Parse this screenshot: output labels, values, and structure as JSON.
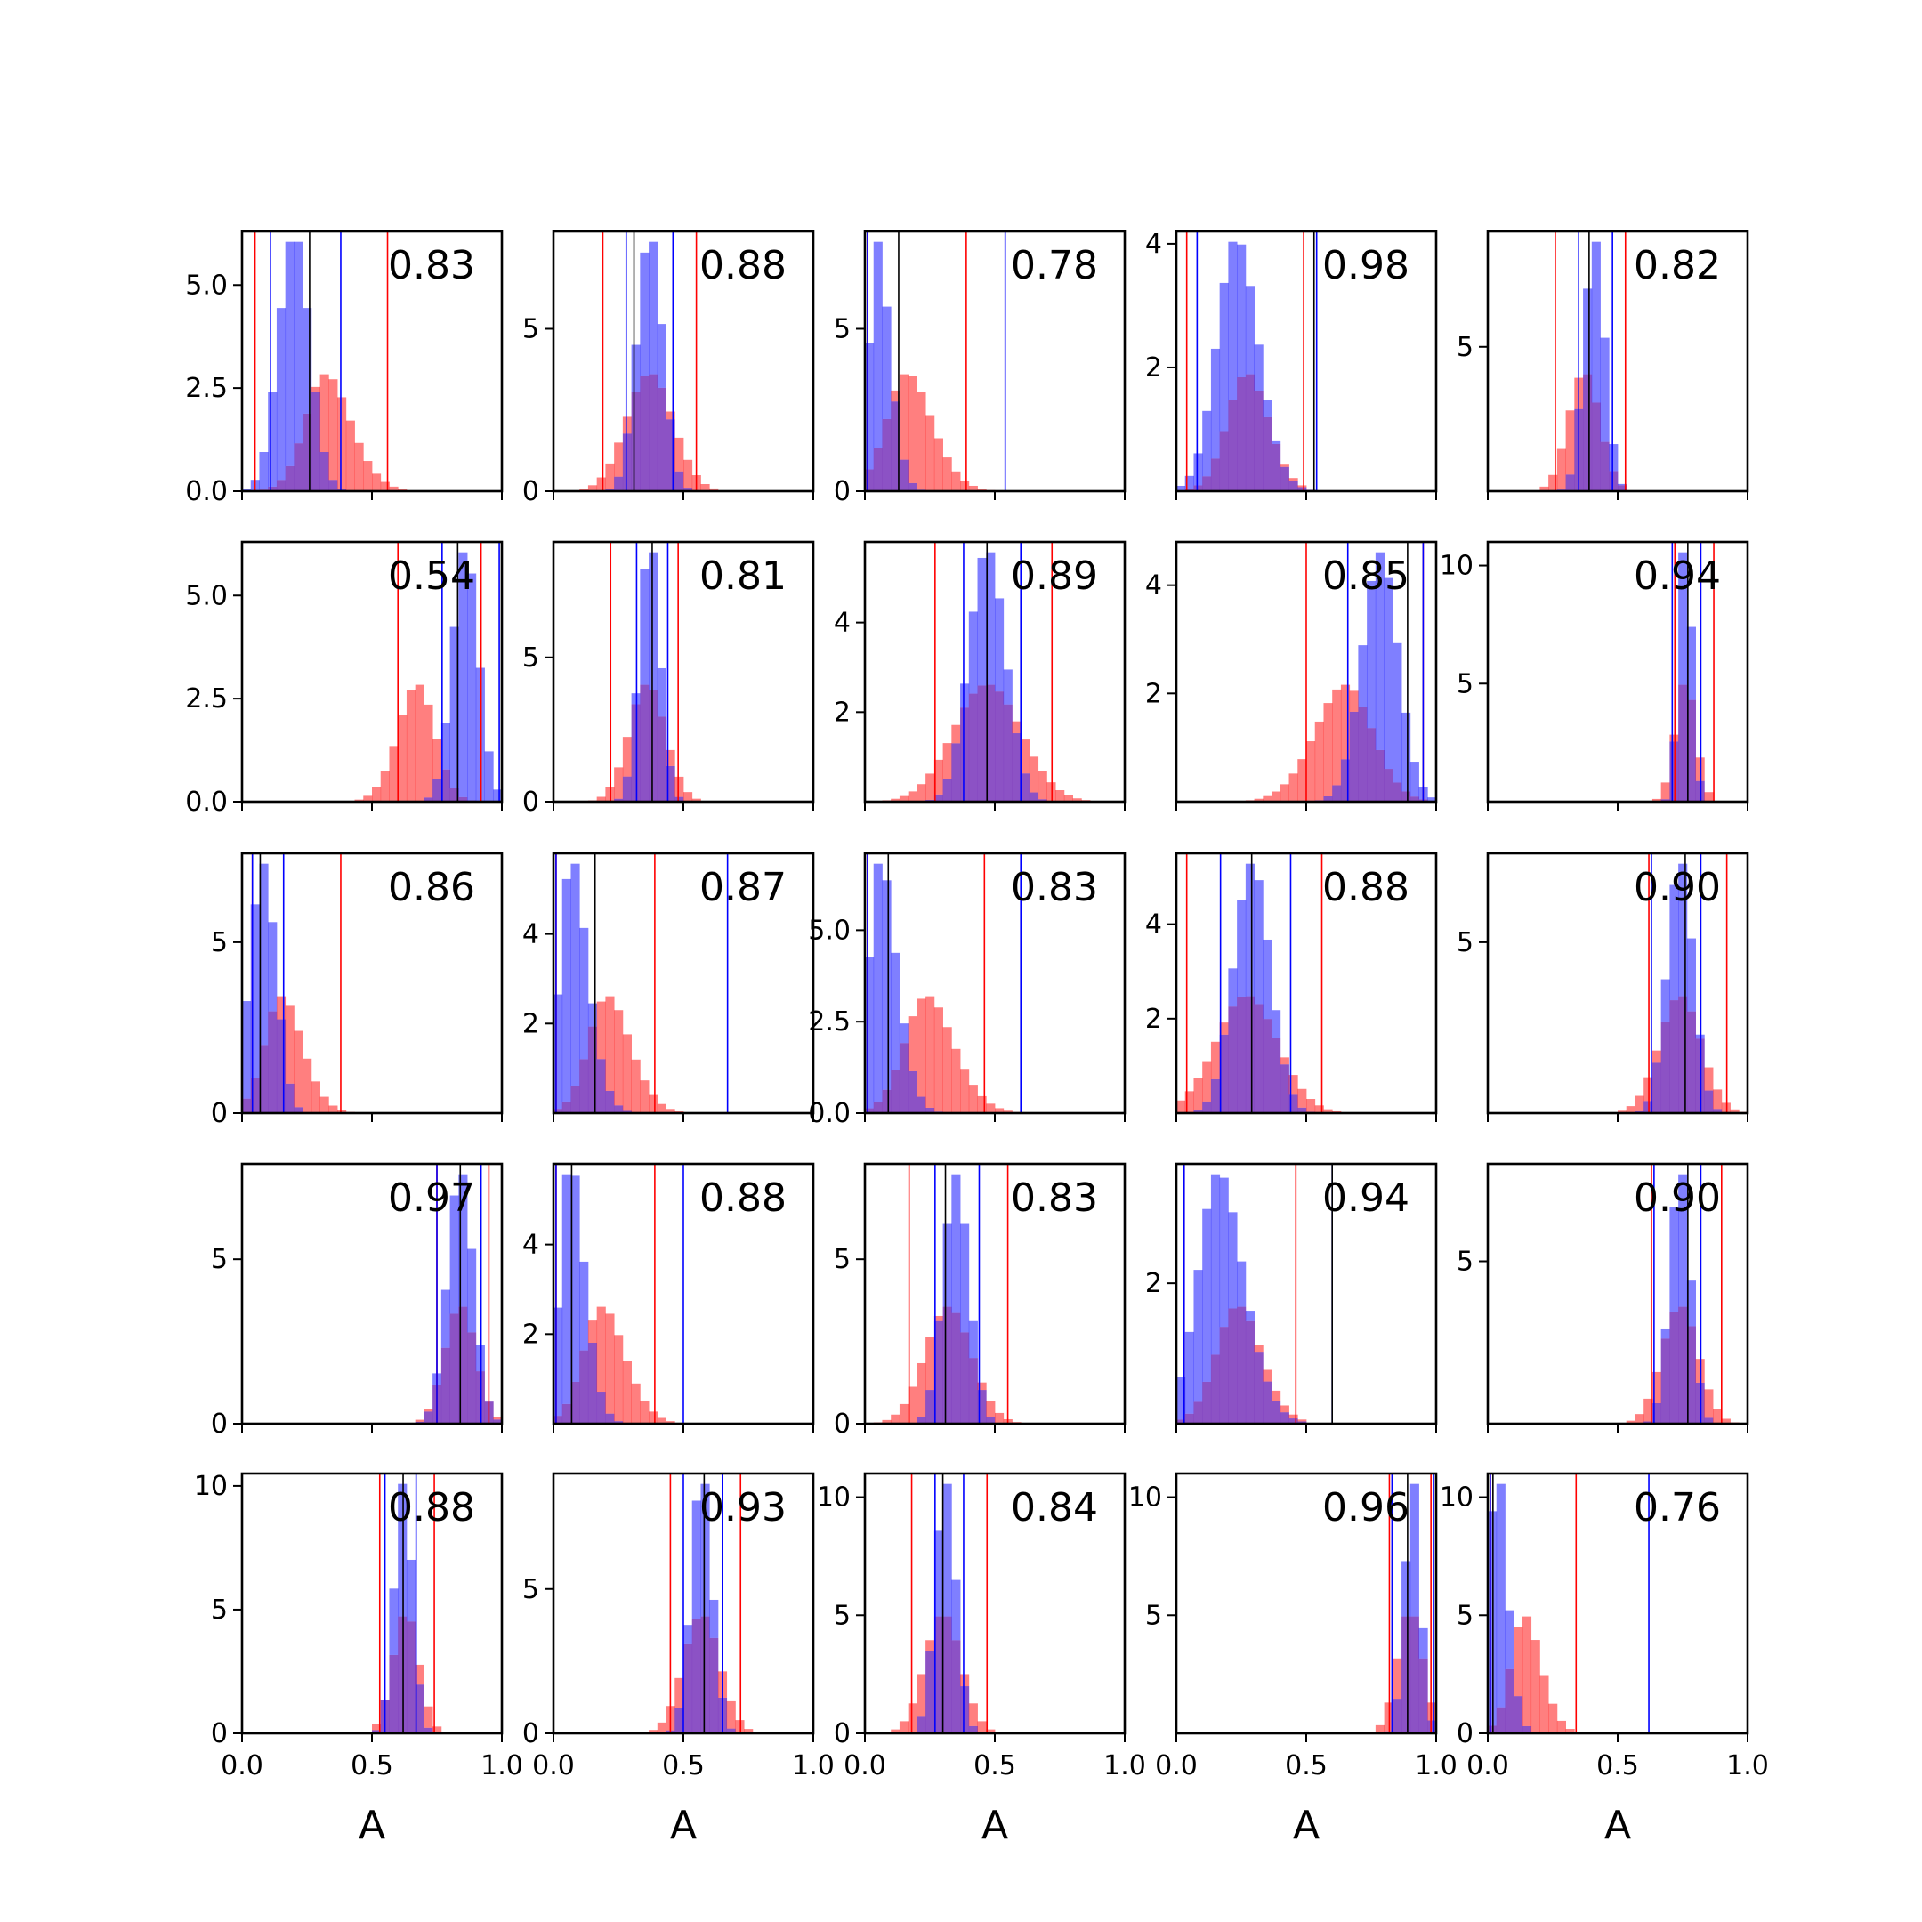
{
  "chart_data": {
    "type": "histogram-grid",
    "rows": 5,
    "cols": 5,
    "xlim": [
      0,
      1
    ],
    "xticks": [
      "0.0",
      "0.5",
      "1.0"
    ],
    "xlabel": "A",
    "colors": {
      "red": "#ff0000",
      "blue": "#0000ff",
      "overlap": "#7f3fbf",
      "median": "#000000"
    },
    "panels": [
      {
        "label": "0.83",
        "yticks": [
          "0.0",
          "2.5",
          "5.0"
        ],
        "ymax": 6.3,
        "red": {
          "center": 0.26,
          "sd": 0.12,
          "skew": 2
        },
        "blue": {
          "center": 0.2,
          "sd": 0.06
        },
        "red_lines": [
          0.05,
          0.56
        ],
        "blue_lines": [
          0.11,
          0.38
        ],
        "black_line": 0.26
      },
      {
        "label": "0.88",
        "yticks": [
          "0",
          "5"
        ],
        "ymax": 8,
        "red": {
          "center": 0.37,
          "sd": 0.09
        },
        "blue": {
          "center": 0.37,
          "sd": 0.05
        },
        "red_lines": [
          0.19,
          0.55
        ],
        "blue_lines": [
          0.28,
          0.46
        ],
        "black_line": 0.31
      },
      {
        "label": "0.78",
        "yticks": [
          "0",
          "5"
        ],
        "ymax": 8,
        "red": {
          "center": 0.1,
          "sd": 0.12,
          "skew": 2
        },
        "blue": {
          "center": 0.02,
          "sd": 0.06,
          "skew": 3
        },
        "red_lines": [
          0.01,
          0.39
        ],
        "blue_lines": [
          0.01,
          0.54
        ],
        "black_line": 0.13
      },
      {
        "label": "0.98",
        "yticks": [
          "2",
          "4"
        ],
        "ymax": 4.2,
        "red": {
          "center": 0.22,
          "sd": 0.1,
          "skew": 1.5
        },
        "blue": {
          "center": 0.18,
          "sd": 0.1,
          "skew": 1.5
        },
        "red_lines": [
          0.04,
          0.49
        ],
        "blue_lines": [
          0.08,
          0.54
        ],
        "black_line": 0.53
      },
      {
        "label": "0.82",
        "yticks": [
          "5"
        ],
        "ymax": 9,
        "red": {
          "center": 0.37,
          "sd": 0.06
        },
        "blue": {
          "center": 0.41,
          "sd": 0.04
        },
        "red_lines": [
          0.26,
          0.53
        ],
        "blue_lines": [
          0.35,
          0.48
        ],
        "black_line": 0.39
      },
      {
        "label": "0.54",
        "yticks": [
          "0.0",
          "2.5",
          "5.0"
        ],
        "ymax": 6.3,
        "red": {
          "center": 0.72,
          "sd": 0.09,
          "skew": -1.5
        },
        "blue": {
          "center": 0.86,
          "sd": 0.05
        },
        "red_lines": [
          0.6,
          0.92
        ],
        "blue_lines": [
          0.77,
          0.99
        ],
        "black_line": 0.83
      },
      {
        "label": "0.81",
        "yticks": [
          "0",
          "5"
        ],
        "ymax": 9,
        "red": {
          "center": 0.36,
          "sd": 0.07
        },
        "blue": {
          "center": 0.37,
          "sd": 0.04
        },
        "red_lines": [
          0.22,
          0.48
        ],
        "blue_lines": [
          0.32,
          0.44
        ],
        "black_line": 0.38
      },
      {
        "label": "0.89",
        "yticks": [
          "2",
          "4"
        ],
        "ymax": 5.8,
        "red": {
          "center": 0.47,
          "sd": 0.13
        },
        "blue": {
          "center": 0.47,
          "sd": 0.07
        },
        "red_lines": [
          0.27,
          0.72
        ],
        "blue_lines": [
          0.38,
          0.6
        ],
        "black_line": 0.47
      },
      {
        "label": "0.85",
        "yticks": [
          "2",
          "4"
        ],
        "ymax": 4.8,
        "red": {
          "center": 0.72,
          "sd": 0.14,
          "skew": -1.5
        },
        "blue": {
          "center": 0.82,
          "sd": 0.08,
          "skew": -1
        },
        "red_lines": [
          0.5,
          0.95
        ],
        "blue_lines": [
          0.66,
          0.95
        ],
        "black_line": 0.89
      },
      {
        "label": "0.94",
        "yticks": [
          "5",
          "10"
        ],
        "ymax": 11,
        "red": {
          "center": 0.76,
          "sd": 0.04
        },
        "blue": {
          "center": 0.76,
          "sd": 0.025
        },
        "red_lines": [
          0.72,
          0.87
        ],
        "blue_lines": [
          0.71,
          0.82
        ],
        "black_line": 0.77
      },
      {
        "label": "0.86",
        "yticks": [
          "0",
          "5"
        ],
        "ymax": 7.6,
        "red": {
          "center": 0.1,
          "sd": 0.1,
          "skew": 2
        },
        "blue": {
          "center": 0.08,
          "sd": 0.05
        },
        "red_lines": [
          0.04,
          0.38
        ],
        "blue_lines": [
          0.04,
          0.16
        ],
        "black_line": 0.07
      },
      {
        "label": "0.87",
        "yticks": [
          "2",
          "4"
        ],
        "ymax": 5.8,
        "red": {
          "center": 0.15,
          "sd": 0.11,
          "skew": 2
        },
        "blue": {
          "center": 0.03,
          "sd": 0.08,
          "skew": 3
        },
        "red_lines": [
          0.01,
          0.39
        ],
        "blue_lines": [
          0.01,
          0.67
        ],
        "black_line": 0.16
      },
      {
        "label": "0.83",
        "yticks": [
          "0.0",
          "2.5",
          "5.0"
        ],
        "ymax": 7.1,
        "red": {
          "center": 0.17,
          "sd": 0.13,
          "skew": 2
        },
        "blue": {
          "center": 0.02,
          "sd": 0.08,
          "skew": 3
        },
        "red_lines": [
          0.01,
          0.46
        ],
        "blue_lines": [
          0.01,
          0.6
        ],
        "black_line": 0.09
      },
      {
        "label": "0.88",
        "yticks": [
          "2",
          "4"
        ],
        "ymax": 5.5,
        "red": {
          "center": 0.27,
          "sd": 0.12
        },
        "blue": {
          "center": 0.29,
          "sd": 0.07
        },
        "red_lines": [
          0.04,
          0.56
        ],
        "blue_lines": [
          0.17,
          0.44
        ],
        "black_line": 0.29
      },
      {
        "label": "0.90",
        "yticks": [
          "5"
        ],
        "ymax": 7.6,
        "red": {
          "center": 0.74,
          "sd": 0.08
        },
        "blue": {
          "center": 0.74,
          "sd": 0.05
        },
        "red_lines": [
          0.62,
          0.92
        ],
        "blue_lines": [
          0.63,
          0.82
        ],
        "black_line": 0.76
      },
      {
        "label": "0.97",
        "yticks": [
          "0",
          "5"
        ],
        "ymax": 7.9,
        "red": {
          "center": 0.84,
          "sd": 0.06
        },
        "blue": {
          "center": 0.84,
          "sd": 0.05
        },
        "red_lines": [
          0.75,
          0.95
        ],
        "blue_lines": [
          0.75,
          0.92
        ],
        "black_line": 0.84
      },
      {
        "label": "0.88",
        "yticks": [
          "2",
          "4"
        ],
        "ymax": 5.8,
        "red": {
          "center": 0.13,
          "sd": 0.11,
          "skew": 2
        },
        "blue": {
          "center": 0.03,
          "sd": 0.07,
          "skew": 3
        },
        "red_lines": [
          0.01,
          0.39
        ],
        "blue_lines": [
          0.01,
          0.5
        ],
        "black_line": 0.07
      },
      {
        "label": "0.83",
        "yticks": [
          "0",
          "5"
        ],
        "ymax": 7.9,
        "red": {
          "center": 0.32,
          "sd": 0.09
        },
        "blue": {
          "center": 0.35,
          "sd": 0.05
        },
        "red_lines": [
          0.17,
          0.55
        ],
        "blue_lines": [
          0.27,
          0.44
        ],
        "black_line": 0.31
      },
      {
        "label": "0.94",
        "yticks": [
          "2"
        ],
        "ymax": 3.7,
        "red": {
          "center": 0.18,
          "sd": 0.11,
          "skew": 1.5
        },
        "blue": {
          "center": 0.1,
          "sd": 0.12,
          "skew": 2
        },
        "red_lines": [
          0.03,
          0.46
        ],
        "blue_lines": [
          0.03,
          0.6
        ],
        "black_line": 0.6
      },
      {
        "label": "0.90",
        "yticks": [
          "5"
        ],
        "ymax": 8,
        "red": {
          "center": 0.74,
          "sd": 0.07
        },
        "blue": {
          "center": 0.74,
          "sd": 0.04
        },
        "red_lines": [
          0.63,
          0.9
        ],
        "blue_lines": [
          0.64,
          0.82
        ],
        "black_line": 0.77
      },
      {
        "label": "0.88",
        "yticks": [
          "0",
          "5",
          "10"
        ],
        "ymax": 10.5,
        "red": {
          "center": 0.63,
          "sd": 0.05
        },
        "blue": {
          "center": 0.62,
          "sd": 0.035
        },
        "red_lines": [
          0.53,
          0.74
        ],
        "blue_lines": [
          0.55,
          0.67
        ],
        "black_line": 0.62
      },
      {
        "label": "0.93",
        "yticks": [
          "0",
          "5"
        ],
        "ymax": 9,
        "red": {
          "center": 0.57,
          "sd": 0.07
        },
        "blue": {
          "center": 0.57,
          "sd": 0.04
        },
        "red_lines": [
          0.45,
          0.72
        ],
        "blue_lines": [
          0.5,
          0.65
        ],
        "black_line": 0.58
      },
      {
        "label": "0.84",
        "yticks": [
          "0",
          "5",
          "10"
        ],
        "ymax": 11,
        "red": {
          "center": 0.3,
          "sd": 0.07
        },
        "blue": {
          "center": 0.31,
          "sd": 0.04
        },
        "red_lines": [
          0.18,
          0.47
        ],
        "blue_lines": [
          0.27,
          0.38
        ],
        "black_line": 0.3
      },
      {
        "label": "0.96",
        "yticks": [
          "5",
          "10"
        ],
        "ymax": 11,
        "red": {
          "center": 0.9,
          "sd": 0.05
        },
        "blue": {
          "center": 0.91,
          "sd": 0.03
        },
        "red_lines": [
          0.82,
          0.98
        ],
        "blue_lines": [
          0.83,
          0.99
        ],
        "black_line": 0.89
      },
      {
        "label": "0.76",
        "yticks": [
          "0",
          "5",
          "10"
        ],
        "ymax": 11,
        "red": {
          "center": 0.1,
          "sd": 0.08,
          "skew": 2
        },
        "blue": {
          "center": 0.01,
          "sd": 0.05,
          "skew": 3
        },
        "red_lines": [
          0.01,
          0.34
        ],
        "blue_lines": [
          0.01,
          0.62
        ],
        "black_line": 0.02
      }
    ]
  }
}
